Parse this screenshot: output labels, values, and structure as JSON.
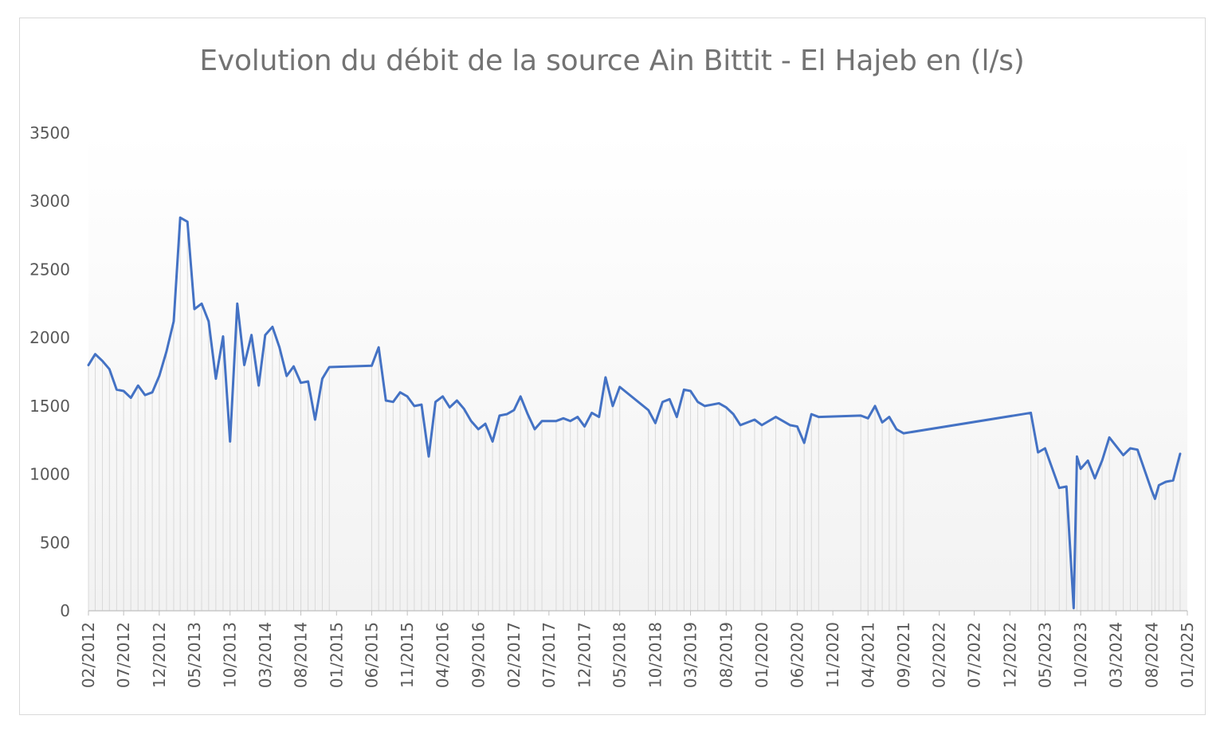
{
  "chart_data": {
    "type": "line",
    "title": "Evolution du débit de la source Ain Bittit - El Hajeb en (l/s)",
    "xlabel": "",
    "ylabel": "",
    "ylim": [
      0,
      3500
    ],
    "yticks": [
      0,
      500,
      1000,
      1500,
      2000,
      2500,
      3000,
      3500
    ],
    "xlim": [
      "2012-02",
      "2025-01"
    ],
    "xticks": [
      "02/2012",
      "07/2012",
      "12/2012",
      "05/2013",
      "10/2013",
      "03/2014",
      "08/2014",
      "01/2015",
      "06/2015",
      "11/2015",
      "04/2016",
      "09/2016",
      "02/2017",
      "07/2017",
      "12/2017",
      "05/2018",
      "10/2018",
      "03/2019",
      "08/2019",
      "01/2020",
      "06/2020",
      "11/2020",
      "04/2021",
      "09/2021",
      "02/2022",
      "07/2022",
      "12/2022",
      "05/2023",
      "10/2023",
      "03/2024",
      "08/2024",
      "01/2025"
    ],
    "grid": false,
    "legend": "none",
    "series_color": "#4472c4",
    "drop_line_color": "#d9d9d9",
    "series": [
      {
        "values": [
          [
            "2012-02-01",
            1800
          ],
          [
            "2012-03-01",
            1880
          ],
          [
            "2012-04-01",
            1830
          ],
          [
            "2012-05-01",
            1770
          ],
          [
            "2012-06-01",
            1620
          ],
          [
            "2012-07-01",
            1610
          ],
          [
            "2012-08-01",
            1560
          ],
          [
            "2012-09-01",
            1650
          ],
          [
            "2012-10-01",
            1580
          ],
          [
            "2012-11-01",
            1600
          ],
          [
            "2012-12-01",
            1720
          ],
          [
            "2013-01-01",
            1900
          ],
          [
            "2013-02-01",
            2120
          ],
          [
            "2013-03-01",
            2880
          ],
          [
            "2013-04-01",
            2850
          ],
          [
            "2013-05-01",
            2210
          ],
          [
            "2013-06-01",
            2250
          ],
          [
            "2013-07-01",
            2120
          ],
          [
            "2013-08-01",
            1700
          ],
          [
            "2013-09-01",
            2010
          ],
          [
            "2013-10-01",
            1240
          ],
          [
            "2013-11-01",
            2250
          ],
          [
            "2013-12-01",
            1800
          ],
          [
            "2014-01-01",
            2020
          ],
          [
            "2014-02-01",
            1650
          ],
          [
            "2014-03-01",
            2020
          ],
          [
            "2014-04-01",
            2080
          ],
          [
            "2014-05-01",
            1930
          ],
          [
            "2014-06-01",
            1720
          ],
          [
            "2014-07-01",
            1790
          ],
          [
            "2014-08-01",
            1670
          ],
          [
            "2014-09-01",
            1680
          ],
          [
            "2014-10-01",
            1400
          ],
          [
            "2014-11-01",
            1700
          ],
          [
            "2014-12-01",
            1785
          ],
          [
            "2015-06-01",
            1795
          ],
          [
            "2015-07-01",
            1930
          ],
          [
            "2015-08-01",
            1540
          ],
          [
            "2015-09-01",
            1530
          ],
          [
            "2015-10-01",
            1600
          ],
          [
            "2015-11-01",
            1570
          ],
          [
            "2015-12-01",
            1500
          ],
          [
            "2016-01-01",
            1510
          ],
          [
            "2016-02-01",
            1130
          ],
          [
            "2016-03-01",
            1530
          ],
          [
            "2016-04-01",
            1570
          ],
          [
            "2016-05-01",
            1490
          ],
          [
            "2016-06-01",
            1540
          ],
          [
            "2016-07-01",
            1480
          ],
          [
            "2016-08-01",
            1390
          ],
          [
            "2016-09-01",
            1330
          ],
          [
            "2016-10-01",
            1370
          ],
          [
            "2016-11-01",
            1240
          ],
          [
            "2016-12-01",
            1430
          ],
          [
            "2017-01-01",
            1440
          ],
          [
            "2017-02-01",
            1470
          ],
          [
            "2017-03-01",
            1570
          ],
          [
            "2017-04-01",
            1440
          ],
          [
            "2017-05-01",
            1330
          ],
          [
            "2017-06-01",
            1390
          ],
          [
            "2017-08-01",
            1390
          ],
          [
            "2017-09-01",
            1410
          ],
          [
            "2017-10-01",
            1390
          ],
          [
            "2017-11-01",
            1420
          ],
          [
            "2017-12-01",
            1350
          ],
          [
            "2018-01-01",
            1450
          ],
          [
            "2018-02-01",
            1420
          ],
          [
            "2018-03-01",
            1710
          ],
          [
            "2018-04-01",
            1500
          ],
          [
            "2018-05-01",
            1640
          ],
          [
            "2018-09-01",
            1470
          ],
          [
            "2018-10-01",
            1375
          ],
          [
            "2018-11-01",
            1530
          ],
          [
            "2018-12-01",
            1550
          ],
          [
            "2019-01-01",
            1420
          ],
          [
            "2019-02-01",
            1620
          ],
          [
            "2019-03-01",
            1610
          ],
          [
            "2019-04-01",
            1530
          ],
          [
            "2019-05-01",
            1500
          ],
          [
            "2019-07-01",
            1520
          ],
          [
            "2019-08-01",
            1490
          ],
          [
            "2019-09-01",
            1440
          ],
          [
            "2019-10-01",
            1360
          ],
          [
            "2019-12-01",
            1400
          ],
          [
            "2020-01-01",
            1360
          ],
          [
            "2020-03-01",
            1420
          ],
          [
            "2020-05-01",
            1360
          ],
          [
            "2020-06-01",
            1350
          ],
          [
            "2020-07-01",
            1230
          ],
          [
            "2020-08-01",
            1440
          ],
          [
            "2020-09-01",
            1420
          ],
          [
            "2021-03-01",
            1430
          ],
          [
            "2021-04-01",
            1410
          ],
          [
            "2021-05-01",
            1500
          ],
          [
            "2021-06-01",
            1380
          ],
          [
            "2021-07-01",
            1420
          ],
          [
            "2021-08-01",
            1330
          ],
          [
            "2021-09-01",
            1300
          ],
          [
            "2023-03-01",
            1450
          ],
          [
            "2023-04-01",
            1160
          ],
          [
            "2023-05-01",
            1190
          ],
          [
            "2023-07-01",
            900
          ],
          [
            "2023-08-01",
            910
          ],
          [
            "2023-09-01",
            20
          ],
          [
            "2023-09-15",
            1130
          ],
          [
            "2023-10-01",
            1040
          ],
          [
            "2023-11-01",
            1100
          ],
          [
            "2023-12-01",
            970
          ],
          [
            "2024-01-01",
            1100
          ],
          [
            "2024-02-01",
            1270
          ],
          [
            "2024-04-01",
            1140
          ],
          [
            "2024-05-01",
            1190
          ],
          [
            "2024-06-01",
            1180
          ],
          [
            "2024-08-01",
            880
          ],
          [
            "2024-08-15",
            820
          ],
          [
            "2024-09-01",
            920
          ],
          [
            "2024-10-01",
            945
          ],
          [
            "2024-11-01",
            955
          ],
          [
            "2024-12-01",
            1150
          ]
        ]
      }
    ]
  }
}
